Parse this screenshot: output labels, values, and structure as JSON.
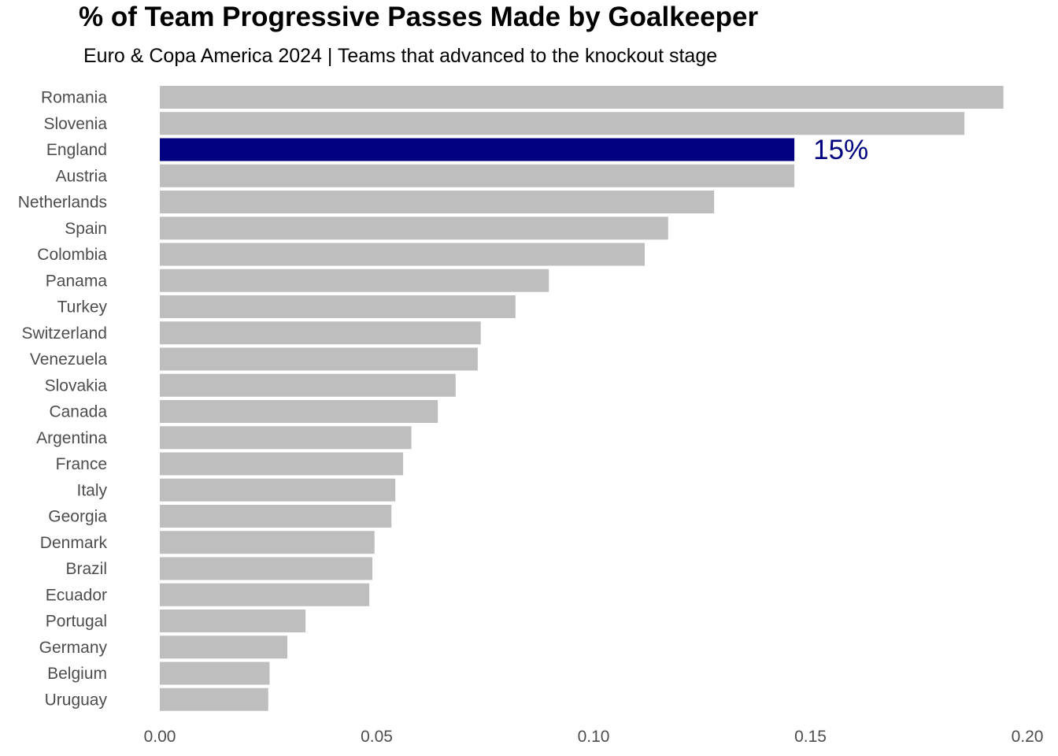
{
  "chart_data": {
    "type": "bar",
    "orientation": "horizontal",
    "title": "% of Team Progressive Passes Made by Goalkeeper",
    "subtitle": "Euro & Copa America 2024 | Teams that advanced to the knockout stage",
    "xlabel": "",
    "ylabel": "",
    "xlim": [
      0,
      0.2
    ],
    "x_ticks": [
      "0.00",
      "0.05",
      "0.10",
      "0.15",
      "0.20"
    ],
    "grid": false,
    "categories": [
      "Romania",
      "Slovenia",
      "England",
      "Austria",
      "Netherlands",
      "Spain",
      "Colombia",
      "Panama",
      "Turkey",
      "Switzerland",
      "Venezuela",
      "Slovakia",
      "Canada",
      "Argentina",
      "France",
      "Italy",
      "Georgia",
      "Denmark",
      "Brazil",
      "Ecuador",
      "Portugal",
      "Germany",
      "Belgium",
      "Uruguay"
    ],
    "values": [
      0.1945,
      0.1855,
      0.1463,
      0.1463,
      0.1278,
      0.1172,
      0.1118,
      0.0897,
      0.082,
      0.074,
      0.0733,
      0.0682,
      0.0641,
      0.058,
      0.0561,
      0.0543,
      0.0534,
      0.0495,
      0.049,
      0.0483,
      0.0336,
      0.0294,
      0.0253,
      0.025
    ],
    "highlight": {
      "category": "England",
      "label": "15%",
      "color": "#000080"
    },
    "bar_color": "#bebebe"
  }
}
